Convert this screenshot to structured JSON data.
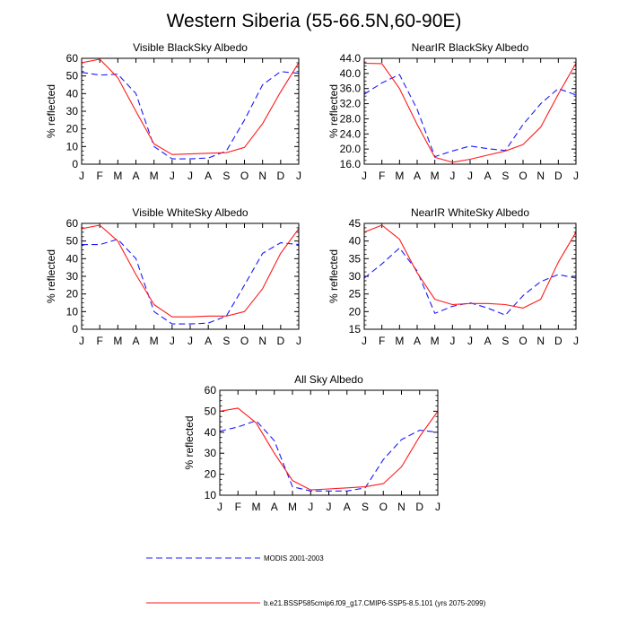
{
  "title": "Western Siberia (55-66.5N,60-90E)",
  "legend": {
    "items": [
      {
        "label": "MODIS 2001-2003",
        "color": "#1a1aff",
        "dash": true
      },
      {
        "label": "b.e21.BSSP585cmip6.f09_g17.CMIP6-SSP5-8.5.101 (yrs 2075-2099)",
        "color": "#ff1a1a",
        "dash": false
      }
    ]
  },
  "chart_data": [
    {
      "type": "line",
      "title": "Visible BlackSky Albedo",
      "ylabel": "% reflected",
      "categories": [
        "J",
        "F",
        "M",
        "A",
        "M",
        "J",
        "J",
        "A",
        "S",
        "O",
        "N",
        "D",
        "J"
      ],
      "ylim": [
        0,
        60
      ],
      "yticks": [
        "0",
        "10",
        "20",
        "30",
        "40",
        "50",
        "60"
      ],
      "series": [
        {
          "name": "MODIS 2001-2003",
          "color": "#1a1aff",
          "dash": true,
          "values": [
            52,
            50.5,
            51,
            40,
            10,
            3,
            3,
            3.5,
            7.5,
            25,
            45,
            52.5,
            51.5
          ]
        },
        {
          "name": "b.e21.BSSP585cmip6.f09_g17.CMIP6-SSP5-8.5.101 (yrs 2075-2099)",
          "color": "#ff1a1a",
          "dash": false,
          "values": [
            57.5,
            59.5,
            49,
            30,
            11.5,
            5.5,
            5.8,
            6.2,
            6.5,
            9.5,
            23,
            41,
            57.5
          ]
        }
      ]
    },
    {
      "type": "line",
      "title": "NearIR BlackSky Albedo",
      "ylabel": "% reflected",
      "categories": [
        "J",
        "F",
        "M",
        "A",
        "M",
        "J",
        "J",
        "A",
        "S",
        "O",
        "N",
        "D",
        "J"
      ],
      "ylim": [
        16,
        44
      ],
      "yticks": [
        "16.0",
        "20.0",
        "24.0",
        "28.0",
        "32.0",
        "36.0",
        "40.0",
        "44.0"
      ],
      "series": [
        {
          "name": "MODIS 2001-2003",
          "color": "#1a1aff",
          "dash": true,
          "values": [
            34.5,
            37.5,
            39.7,
            30.5,
            18,
            19.5,
            20.8,
            20.1,
            19.6,
            26.5,
            32,
            36,
            34.3
          ]
        },
        {
          "name": "b.e21.BSSP585cmip6.f09_g17.CMIP6-SSP5-8.5.101 (yrs 2075-2099)",
          "color": "#ff1a1a",
          "dash": false,
          "values": [
            42.7,
            42.6,
            36,
            26.5,
            17.8,
            16.5,
            17.3,
            18.4,
            19.5,
            21.2,
            25.8,
            34.5,
            42.7
          ]
        }
      ]
    },
    {
      "type": "line",
      "title": "Visible WhiteSky Albedo",
      "ylabel": "% reflected",
      "categories": [
        "J",
        "F",
        "M",
        "A",
        "M",
        "J",
        "J",
        "A",
        "S",
        "O",
        "N",
        "D",
        "J"
      ],
      "ylim": [
        0,
        60
      ],
      "yticks": [
        "0",
        "10",
        "20",
        "30",
        "40",
        "50",
        "60"
      ],
      "series": [
        {
          "name": "MODIS 2001-2003",
          "color": "#1a1aff",
          "dash": true,
          "values": [
            48,
            48,
            51,
            40,
            10,
            3,
            3,
            3.5,
            7.5,
            25,
            43,
            49,
            48
          ]
        },
        {
          "name": "b.e21.BSSP585cmip6.f09_g17.CMIP6-SSP5-8.5.101 (yrs 2075-2099)",
          "color": "#ff1a1a",
          "dash": false,
          "values": [
            57,
            59,
            50,
            31,
            14,
            7,
            7,
            7.5,
            7.5,
            10,
            23,
            43,
            57
          ]
        }
      ]
    },
    {
      "type": "line",
      "title": "NearIR WhiteSky Albedo",
      "ylabel": "% reflected",
      "categories": [
        "J",
        "F",
        "M",
        "A",
        "M",
        "J",
        "J",
        "A",
        "S",
        "O",
        "N",
        "D",
        "J"
      ],
      "ylim": [
        15,
        45
      ],
      "yticks": [
        "15",
        "20",
        "25",
        "30",
        "35",
        "40",
        "45"
      ],
      "series": [
        {
          "name": "MODIS 2001-2003",
          "color": "#1a1aff",
          "dash": true,
          "values": [
            29.5,
            33.5,
            38,
            31.5,
            19.5,
            21.5,
            22.5,
            21,
            19,
            24.5,
            28.5,
            30.5,
            29.5
          ]
        },
        {
          "name": "b.e21.BSSP585cmip6.f09_g17.CMIP6-SSP5-8.5.101 (yrs 2075-2099)",
          "color": "#ff1a1a",
          "dash": false,
          "values": [
            42.5,
            44.5,
            40.5,
            31,
            23.5,
            22,
            22.3,
            22.3,
            22,
            21,
            23.5,
            34,
            42.5
          ]
        }
      ]
    },
    {
      "type": "line",
      "title": "All Sky Albedo",
      "ylabel": "% reflected",
      "categories": [
        "J",
        "F",
        "M",
        "A",
        "M",
        "J",
        "J",
        "A",
        "S",
        "O",
        "N",
        "D",
        "J"
      ],
      "ylim": [
        10,
        60
      ],
      "yticks": [
        "10",
        "20",
        "30",
        "40",
        "50",
        "60"
      ],
      "series": [
        {
          "name": "MODIS 2001-2003",
          "color": "#1a1aff",
          "dash": true,
          "values": [
            40.5,
            42.5,
            45.5,
            36,
            14,
            12,
            12,
            12,
            13.5,
            27,
            36.5,
            41,
            40
          ]
        },
        {
          "name": "b.e21.BSSP585cmip6.f09_g17.CMIP6-SSP5-8.5.101 (yrs 2075-2099)",
          "color": "#ff1a1a",
          "dash": false,
          "values": [
            50,
            51.5,
            44.5,
            30,
            17,
            12.5,
            13,
            13.5,
            14,
            15.5,
            23.5,
            38,
            50
          ]
        }
      ]
    }
  ]
}
